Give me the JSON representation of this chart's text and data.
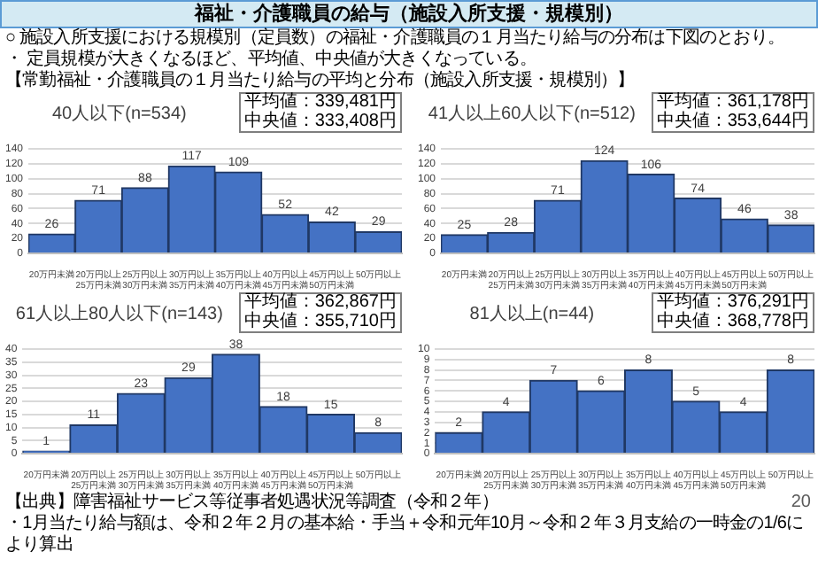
{
  "chart_data": [
    {
      "type": "other",
      "title": "福祉・介護職員の給与（施設入所支援・規模別）",
      "annotations": [
        "○ 施設入所支援における規模別（定員数）の福祉・介護職員の１月当たり給与の分布は下図のとおり。",
        "・ 定員規模が大きくなるほど、平均値、中央値が大きくなっている。",
        "【常勤福祉・介護職員の１月当たり給与の平均と分布（施設入所支援・規模別）】"
      ]
    },
    {
      "type": "bar",
      "title": "40人以下(n=534)",
      "categories": [
        "20万円未満",
        "20万円以上\n25万円未満",
        "25万円以上\n30万円未満",
        "30万円以上\n35万円未満",
        "35万円以上\n40万円未満",
        "40万円以上\n45万円未満",
        "45万円以上\n50万円未満",
        "50万円以上"
      ],
      "values": [
        26,
        71,
        88,
        117,
        109,
        52,
        42,
        29
      ],
      "color": "#4472c4",
      "ylim": [
        0,
        140
      ],
      "yticks": [
        0,
        20,
        40,
        60,
        80,
        100,
        120,
        140
      ],
      "grid": "y",
      "data_labels": true,
      "annotations": [
        "平均値：339,481円",
        "中央値：333,408円"
      ]
    },
    {
      "type": "bar",
      "title": "41人以上60人以下(n=512)",
      "categories": [
        "20万円未満",
        "20万円以上\n25万円未満",
        "25万円以上\n30万円未満",
        "30万円以上\n35万円未満",
        "35万円以上\n40万円未満",
        "40万円以上\n45万円未満",
        "45万円以上\n50万円未満",
        "50万円以上"
      ],
      "values": [
        25,
        28,
        71,
        124,
        106,
        74,
        46,
        38
      ],
      "color": "#4472c4",
      "ylim": [
        0,
        140
      ],
      "yticks": [
        0,
        20,
        40,
        60,
        80,
        100,
        120,
        140
      ],
      "grid": "y",
      "data_labels": true,
      "annotations": [
        "平均値：361,178円",
        "中央値：353,644円"
      ]
    },
    {
      "type": "bar",
      "title": "61人以上80人以下(n=143)",
      "categories": [
        "20万円未満",
        "20万円以上\n25万円未満",
        "25万円以上\n30万円未満",
        "30万円以上\n35万円未満",
        "35万円以上\n40万円未満",
        "40万円以上\n45万円未満",
        "45万円以上\n50万円未満",
        "50万円以上"
      ],
      "values": [
        1,
        11,
        23,
        29,
        38,
        18,
        15,
        8
      ],
      "color": "#4472c4",
      "ylim": [
        0,
        40
      ],
      "yticks": [
        0,
        5,
        10,
        15,
        20,
        25,
        30,
        35,
        40
      ],
      "grid": "y",
      "data_labels": true,
      "annotations": [
        "平均値：362,867円",
        "中央値：355,710円"
      ]
    },
    {
      "type": "bar",
      "title": "81人以上(n=44)",
      "categories": [
        "20万円未満",
        "20万円以上\n25万円未満",
        "25万円以上\n30万円未満",
        "30万円以上\n35万円未満",
        "35万円以上\n40万円未満",
        "40万円以上\n45万円未満",
        "45万円以上\n50万円未満",
        "50万円以上"
      ],
      "values": [
        2,
        4,
        7,
        6,
        8,
        5,
        4,
        8
      ],
      "color": "#4472c4",
      "ylim": [
        0,
        10
      ],
      "yticks": [
        0,
        1,
        2,
        3,
        4,
        5,
        6,
        7,
        8,
        9,
        10
      ],
      "grid": "y",
      "data_labels": true,
      "annotations": [
        "平均値：376,291円",
        "中央値：368,778円"
      ]
    },
    {
      "type": "other",
      "annotations": [
        "【出典】障害福祉サービス等従事者処遇状況等調査（令和２年）",
        "・1月当たり給与額は、令和２年２月の基本給・手当＋令和元年10月～令和２年３月支給の一時金の1/6により算出",
        "20"
      ]
    }
  ]
}
